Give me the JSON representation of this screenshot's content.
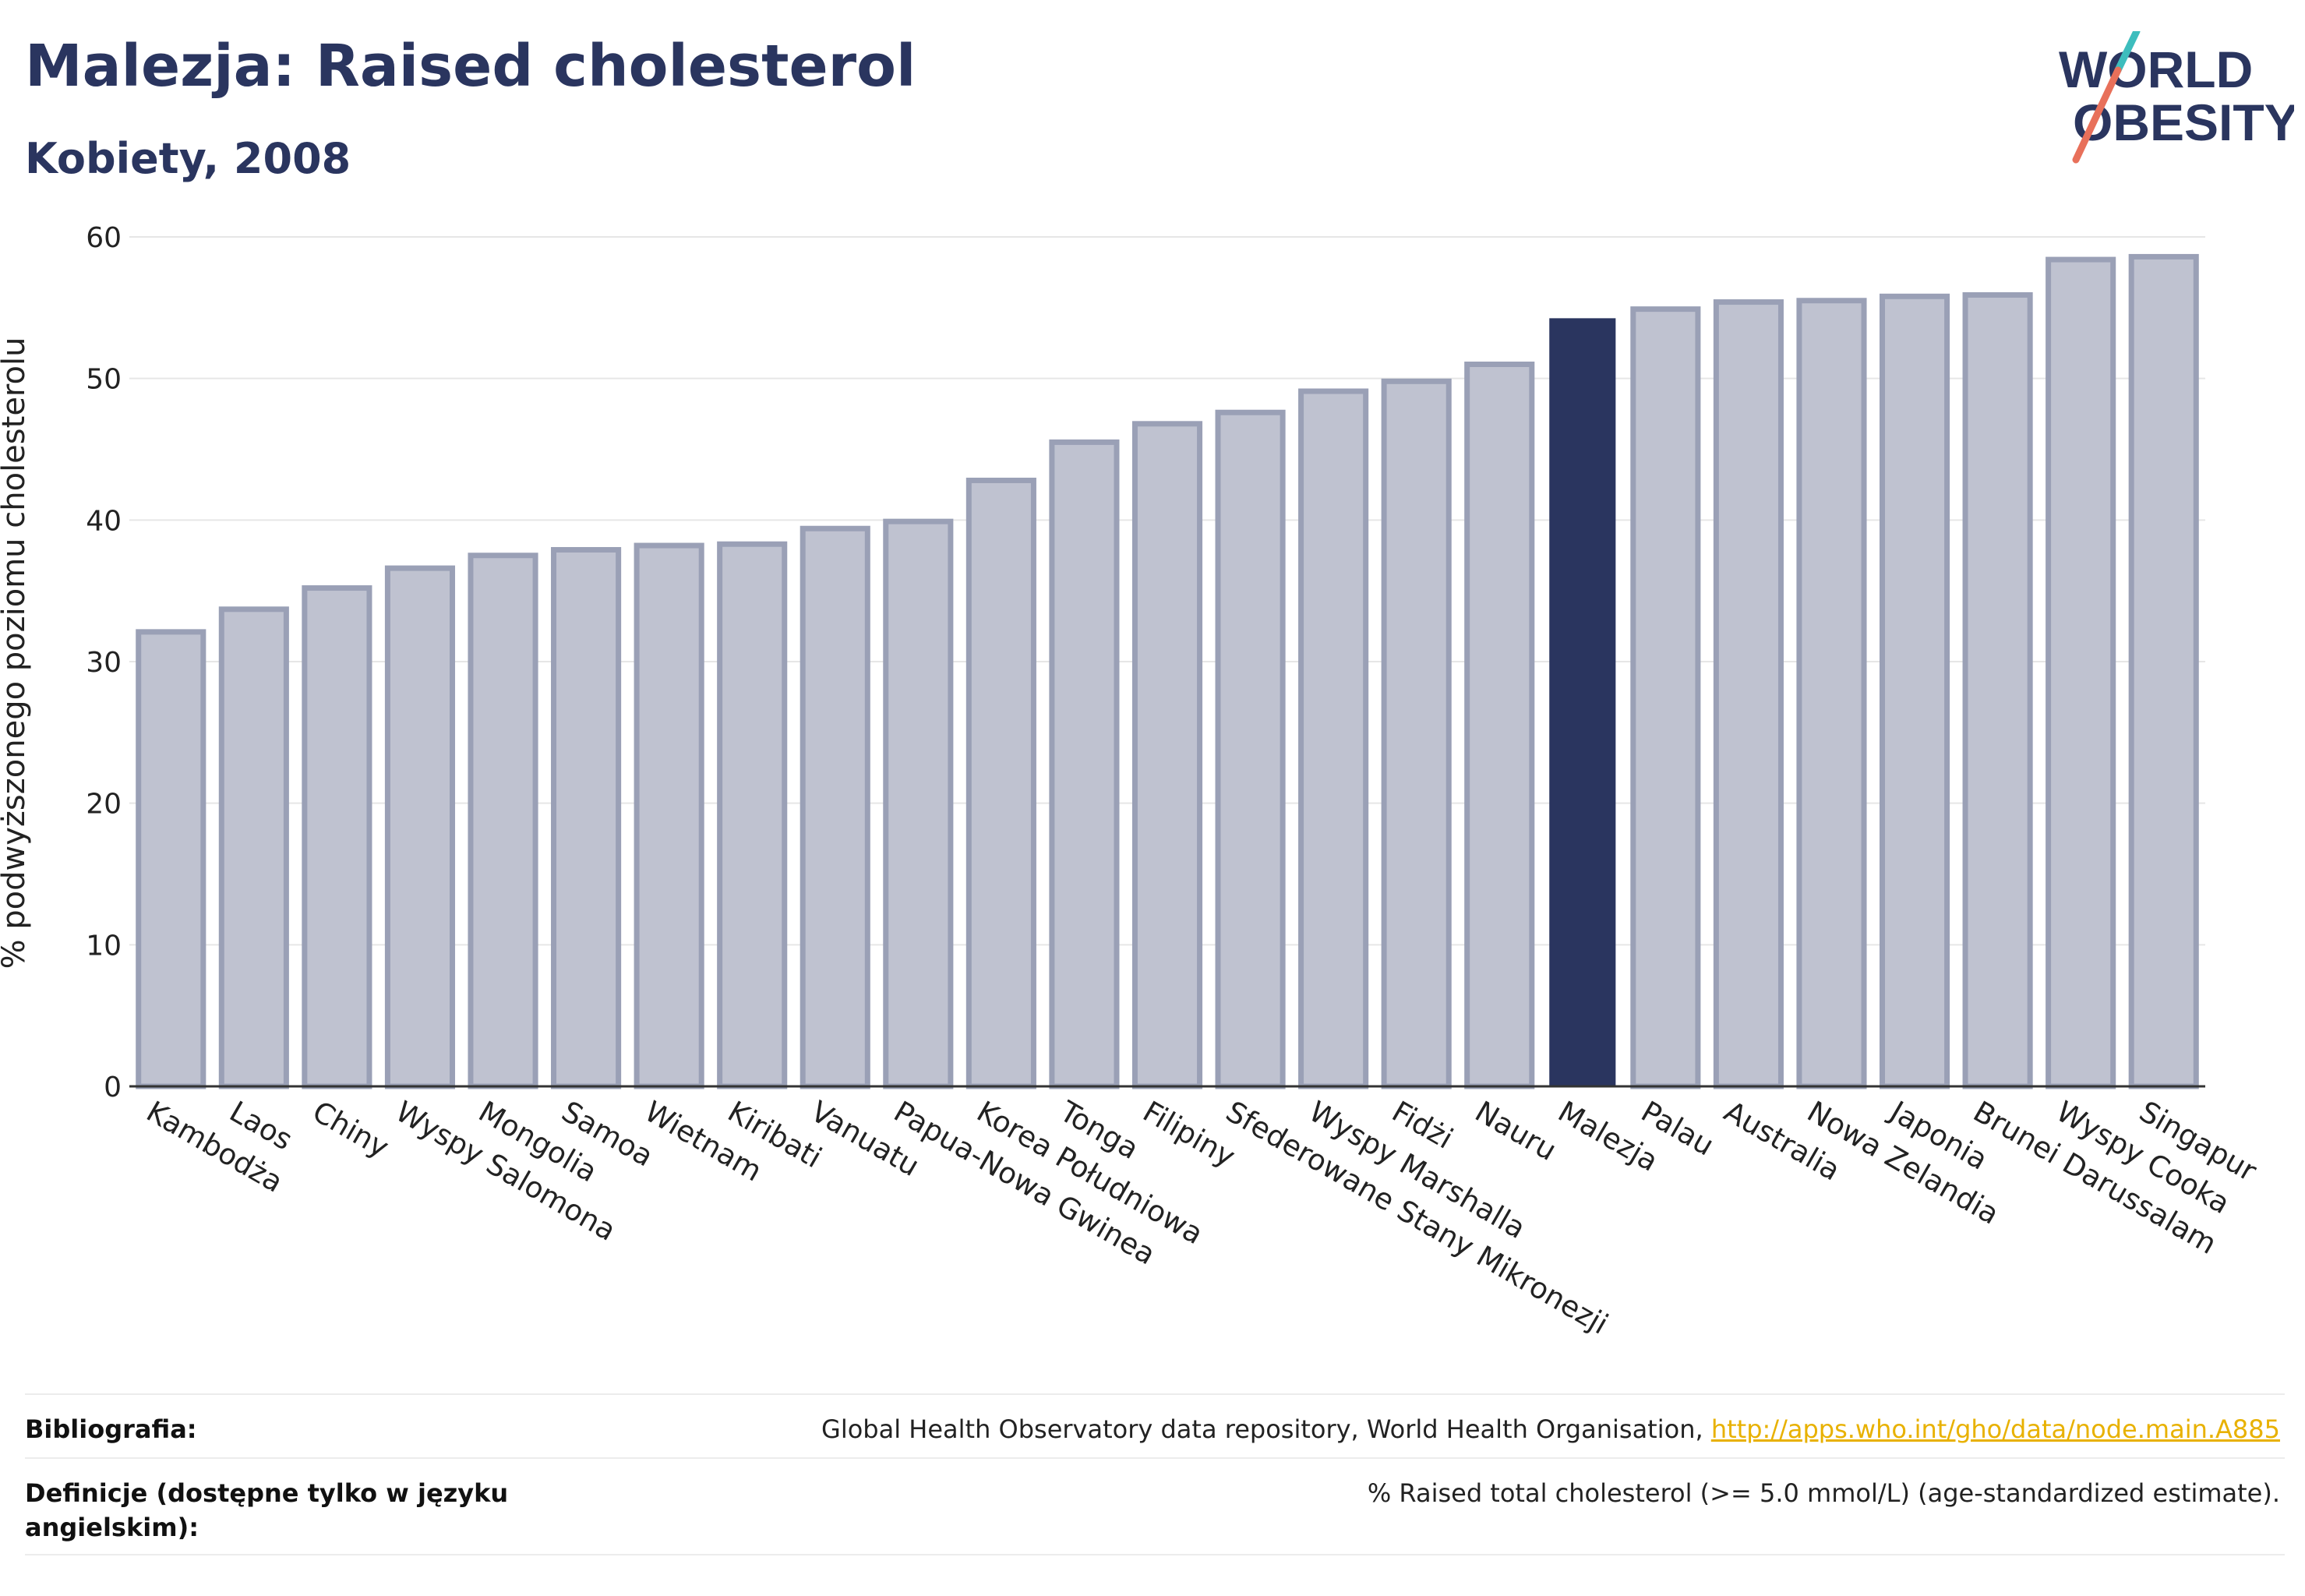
{
  "title": "Malezja: Raised cholesterol",
  "subtitle": "Kobiety, 2008",
  "logo": {
    "line1": "WORLD",
    "line2": "OBESITY"
  },
  "colors": {
    "bar": "#bfc2d0",
    "bar_edge": "#9aa0b6",
    "highlight": "#2a355f",
    "text": "#2a355f"
  },
  "chart_data": {
    "type": "bar",
    "ylabel": "% podwyższonego poziomu cholesterolu",
    "ylim": [
      0,
      60
    ],
    "yticks": [
      0,
      10,
      20,
      30,
      40,
      50,
      60
    ],
    "grid": true,
    "highlight": "Malezja",
    "categories": [
      "Kambodża",
      "Laos",
      "Chiny",
      "Wyspy Salomona",
      "Mongolia",
      "Samoa",
      "Wietnam",
      "Kiribati",
      "Vanuatu",
      "Papua-Nowa Gwinea",
      "Korea Południowa",
      "Tonga",
      "Filipiny",
      "Sfederowane Stany Mikronezji",
      "Wyspy Marshalla",
      "Fidżi",
      "Nauru",
      "Malezja",
      "Palau",
      "Australia",
      "Nowa Zelandia",
      "Japonia",
      "Brunei Darussalam",
      "Wyspy Cooka",
      "Singapur"
    ],
    "values": [
      32.1,
      33.7,
      35.2,
      36.6,
      37.5,
      37.9,
      38.2,
      38.3,
      39.4,
      39.9,
      42.8,
      45.5,
      46.8,
      47.6,
      49.1,
      49.8,
      51.0,
      54.2,
      54.9,
      55.4,
      55.5,
      55.8,
      55.9,
      58.4,
      58.6
    ]
  },
  "footer": {
    "bibliography_label": "Bibliografia:",
    "bibliography_text": "Global Health Observatory data repository, World Health Organisation, ",
    "bibliography_link": "http://apps.who.int/gho/data/node.main.A885",
    "definition_label": "Definicje (dostępne tylko w języku angielskim):",
    "definition_text": "% Raised total cholesterol (>= 5.0 mmol/L) (age-standardized estimate)."
  }
}
